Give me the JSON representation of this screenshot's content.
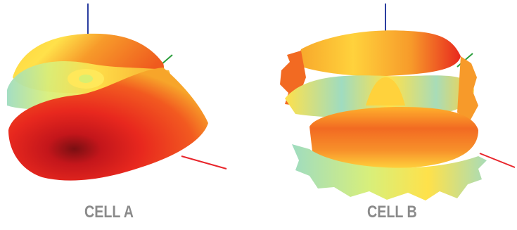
{
  "panels": [
    {
      "label": "CELL A"
    },
    {
      "label": "CELL B"
    }
  ],
  "colors": {
    "x_axis": "#e8252b",
    "y_axis": "#2a9e3c",
    "z_axis": "#2b3ea0",
    "label_gray": "#8a8a8a",
    "heat_low": "#8fd8c0",
    "heat_mid": "#ffe14a",
    "heat_high": "#e8281e",
    "heat_peak": "#7a0f12"
  }
}
